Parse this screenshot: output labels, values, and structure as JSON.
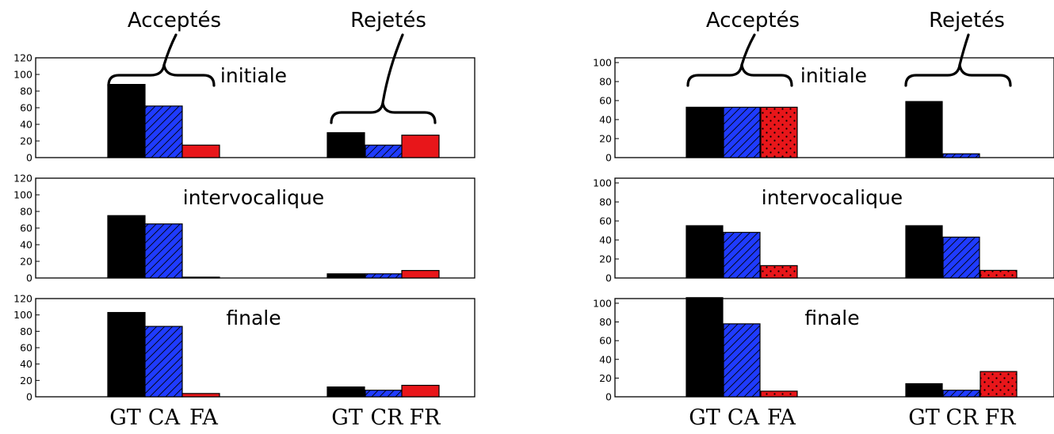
{
  "chart_data": [
    {
      "type": "bar",
      "group_labels": [
        "Acceptés",
        "Rejetés"
      ],
      "category_labels": [
        "GT",
        "CA",
        "FA",
        "GT",
        "CR",
        "FR"
      ],
      "colors": {
        "GT": "#000000",
        "C": "#1f3bff",
        "F": "#e8161a"
      },
      "hatches": {
        "GT": "none",
        "C": "diagonal",
        "F": "none"
      },
      "ylim": [
        0,
        120
      ],
      "yticks": [
        0,
        20,
        40,
        60,
        80,
        100,
        120
      ],
      "grid": false,
      "panels": [
        {
          "title": "initiale",
          "values": [
            88,
            62,
            15,
            30,
            15,
            27
          ]
        },
        {
          "title": "intervocalique",
          "values": [
            75,
            65,
            1,
            5,
            5,
            9
          ]
        },
        {
          "title": "finale",
          "values": [
            103,
            86,
            4,
            12,
            8,
            14
          ]
        }
      ]
    },
    {
      "type": "bar",
      "group_labels": [
        "Acceptés",
        "Rejetés"
      ],
      "category_labels": [
        "GT",
        "CA",
        "FA",
        "GT",
        "CR",
        "FR"
      ],
      "colors": {
        "GT": "#000000",
        "C": "#1f3bff",
        "F": "#e8161a"
      },
      "hatches": {
        "GT": "none",
        "C": "diagonal",
        "F": "dots"
      },
      "ylim": [
        0,
        105
      ],
      "yticks": [
        0,
        20,
        40,
        60,
        80,
        100
      ],
      "grid": false,
      "panels": [
        {
          "title": "initiale",
          "values": [
            53,
            53,
            53,
            59,
            4,
            0
          ]
        },
        {
          "title": "intervocalique",
          "values": [
            55,
            48,
            13,
            55,
            43,
            8
          ]
        },
        {
          "title": "finale",
          "values": [
            106,
            78,
            6,
            14,
            7,
            27
          ]
        }
      ]
    }
  ]
}
